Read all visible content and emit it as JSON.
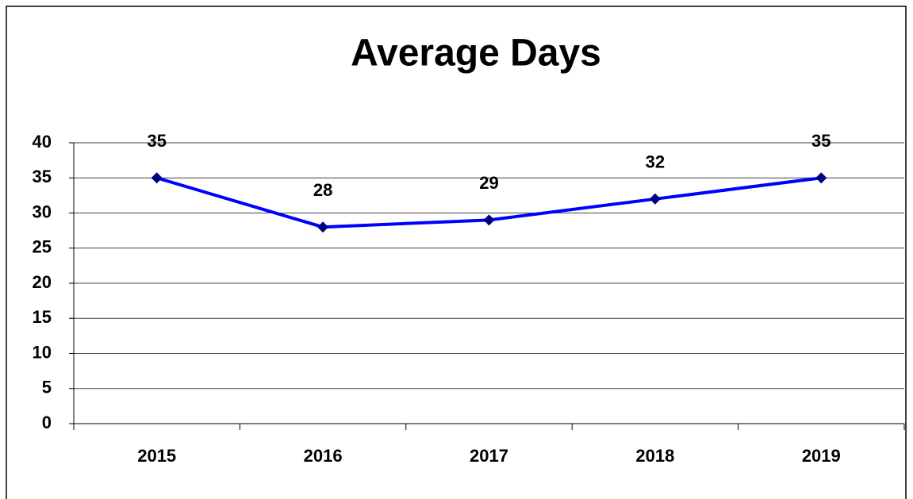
{
  "chart_data": {
    "type": "line",
    "title": "Average Days",
    "categories": [
      "2015",
      "2016",
      "2017",
      "2018",
      "2019"
    ],
    "series": [
      {
        "name": "Average Days",
        "color": "#0000ff",
        "marker_color": "#000080",
        "values": [
          35,
          28,
          29,
          32,
          35
        ]
      }
    ],
    "ylim": [
      0,
      40
    ],
    "yticks": [
      0,
      5,
      10,
      15,
      20,
      25,
      30,
      35,
      40
    ],
    "grid": true
  }
}
